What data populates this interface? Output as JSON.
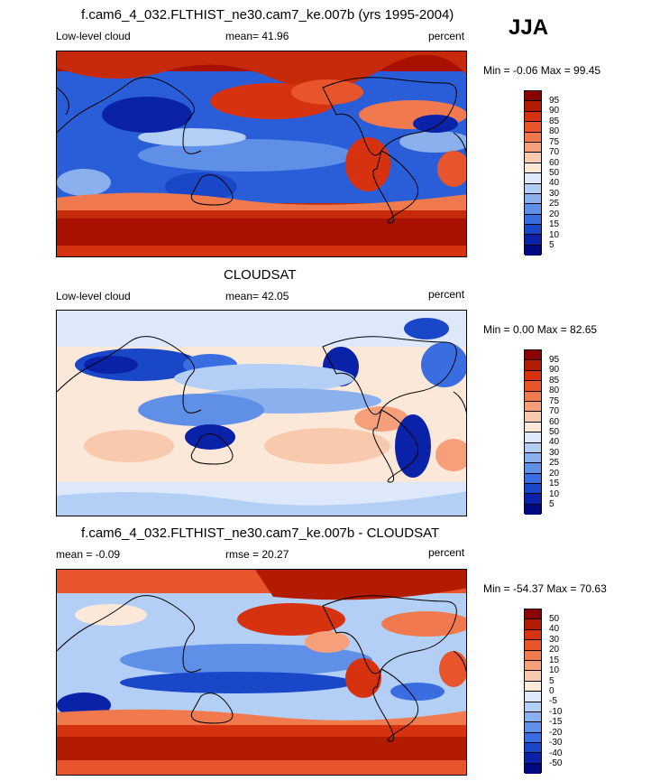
{
  "season": "JJA",
  "panels": [
    {
      "title": "f.cam6_4_032.FLTHIST_ne30.cam7_ke.007b (yrs 1995-2004)",
      "left_label": "Low-level cloud",
      "mean_label": "mean=  41.96",
      "units": "percent",
      "minmax": "Min =  -0.06 Max =  99.45",
      "colorbar_labels": [
        "95",
        "90",
        "85",
        "80",
        "75",
        "70",
        "60",
        "50",
        "40",
        "30",
        "25",
        "20",
        "15",
        "10",
        "5"
      ],
      "colorbar_colors": [
        "#8b0000",
        "#b31b00",
        "#d6320f",
        "#e8542b",
        "#f07a4e",
        "#f5a07a",
        "#f8c9ac",
        "#fbe8d8",
        "#dde9fa",
        "#b4cff5",
        "#8ab1ee",
        "#5f8fe6",
        "#3a6ee0",
        "#1a46c8",
        "#0a22a8",
        "#000a80"
      ]
    },
    {
      "title": "CLOUDSAT",
      "left_label": "Low-level cloud",
      "mean_label": "mean=  42.05",
      "units": "percent",
      "minmax": "Min =   0.00 Max =  82.65",
      "colorbar_labels": [
        "95",
        "90",
        "85",
        "80",
        "75",
        "70",
        "60",
        "50",
        "40",
        "30",
        "25",
        "20",
        "15",
        "10",
        "5"
      ],
      "colorbar_colors": [
        "#8b0000",
        "#b31b00",
        "#d6320f",
        "#e8542b",
        "#f07a4e",
        "#f5a07a",
        "#f8c9ac",
        "#fbe8d8",
        "#dde9fa",
        "#b4cff5",
        "#8ab1ee",
        "#5f8fe6",
        "#3a6ee0",
        "#1a46c8",
        "#0a22a8",
        "#000a80"
      ]
    },
    {
      "title": "f.cam6_4_032.FLTHIST_ne30.cam7_ke.007b - CLOUDSAT",
      "left_label": "mean =  -0.09",
      "mean_label": "rmse =  20.27",
      "units": "percent",
      "minmax": "Min = -54.37 Max =  70.63",
      "colorbar_labels": [
        "50",
        "40",
        "30",
        "20",
        "15",
        "10",
        "5",
        "0",
        "-5",
        "-10",
        "-15",
        "-20",
        "-30",
        "-40",
        "-50"
      ],
      "colorbar_colors": [
        "#8b0000",
        "#b31b00",
        "#d6320f",
        "#e8542b",
        "#f07a4e",
        "#f5a07a",
        "#f8c9ac",
        "#fbe8d8",
        "#dde9fa",
        "#b4cff5",
        "#8ab1ee",
        "#5f8fe6",
        "#3a6ee0",
        "#1a46c8",
        "#0a22a8",
        "#000a80"
      ]
    }
  ],
  "chart_data": [
    {
      "type": "heatmap",
      "title": "f.cam6_4_032.FLTHIST_ne30.cam7_ke.007b (yrs 1995-2004)",
      "variable": "Low-level cloud",
      "units": "percent",
      "mean": 41.96,
      "min": -0.06,
      "max": 99.45,
      "levels": [
        5,
        10,
        15,
        20,
        25,
        30,
        40,
        50,
        60,
        70,
        75,
        80,
        85,
        90,
        95
      ]
    },
    {
      "type": "heatmap",
      "title": "CLOUDSAT",
      "variable": "Low-level cloud",
      "units": "percent",
      "mean": 42.05,
      "min": 0.0,
      "max": 82.65,
      "levels": [
        5,
        10,
        15,
        20,
        25,
        30,
        40,
        50,
        60,
        70,
        75,
        80,
        85,
        90,
        95
      ]
    },
    {
      "type": "heatmap",
      "title": "f.cam6_4_032.FLTHIST_ne30.cam7_ke.007b - CLOUDSAT",
      "units": "percent",
      "mean": -0.09,
      "rmse": 20.27,
      "min": -54.37,
      "max": 70.63,
      "levels": [
        -50,
        -40,
        -30,
        -20,
        -15,
        -10,
        -5,
        0,
        5,
        10,
        15,
        20,
        30,
        40,
        50
      ]
    }
  ]
}
